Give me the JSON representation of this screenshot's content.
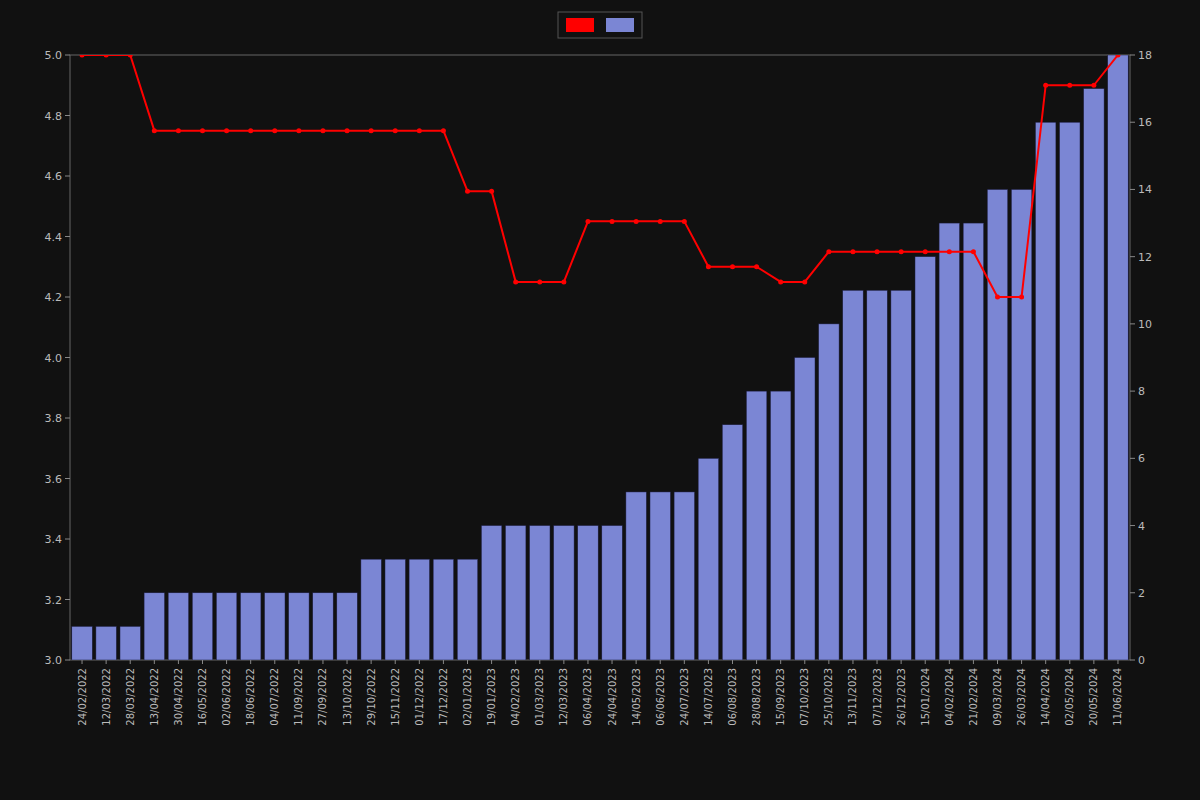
{
  "chart_data": {
    "type": "bar",
    "categories": [
      "24/02/2022",
      "12/03/2022",
      "28/03/2022",
      "13/04/2022",
      "30/04/2022",
      "16/05/2022",
      "02/06/2022",
      "18/06/2022",
      "04/07/2022",
      "11/09/2022",
      "27/09/2022",
      "13/10/2022",
      "29/10/2022",
      "15/11/2022",
      "01/12/2022",
      "17/12/2022",
      "02/01/2023",
      "19/01/2023",
      "04/02/2023",
      "01/03/2023",
      "12/03/2023",
      "06/04/2023",
      "24/04/2023",
      "14/05/2023",
      "06/06/2023",
      "24/07/2023",
      "14/07/2023",
      "06/08/2023",
      "28/08/2023",
      "15/09/2023",
      "07/10/2023",
      "25/10/2023",
      "13/11/2023",
      "07/12/2023",
      "26/12/2023",
      "15/01/2024",
      "04/02/2024",
      "21/02/2024",
      "09/03/2024",
      "26/03/2024",
      "14/04/2024",
      "02/05/2024",
      "20/05/2024",
      "11/06/2024"
    ],
    "series": [
      {
        "type": "line",
        "color": "#ff0000",
        "marker": "circle",
        "values": [
          5.0,
          5.0,
          5.0,
          4.75,
          4.75,
          4.75,
          4.75,
          4.75,
          4.75,
          4.75,
          4.75,
          4.75,
          4.75,
          4.75,
          4.75,
          4.75,
          4.55,
          4.55,
          4.25,
          4.25,
          4.25,
          4.45,
          4.45,
          4.45,
          4.45,
          4.45,
          4.3,
          4.3,
          4.3,
          4.25,
          4.25,
          4.35,
          4.35,
          4.35,
          4.35,
          4.35,
          4.35,
          4.35,
          4.2,
          4.2,
          4.9,
          4.9,
          4.9,
          5.0
        ]
      },
      {
        "type": "bar",
        "axis": "y2",
        "color": "#7b86d4",
        "values": [
          1,
          1,
          1,
          2,
          2,
          2,
          2,
          2,
          2,
          2,
          2,
          2,
          3,
          3,
          3,
          3,
          3,
          4,
          4,
          4,
          4,
          4,
          4,
          5,
          5,
          5,
          6,
          7,
          8,
          8,
          9,
          10,
          11,
          11,
          11,
          12,
          13,
          13,
          14,
          14,
          16,
          16,
          17,
          18
        ]
      }
    ],
    "ylim": [
      3.0,
      5.0
    ],
    "yticks": [
      {
        "value": 3.0,
        "label": "3.0"
      },
      3.2,
      3.4,
      3.6,
      3.8,
      {
        "value": 4.0,
        "label": "4.0"
      },
      4.2,
      4.4,
      4.6,
      4.8,
      {
        "value": 5.0,
        "label": "5.0"
      }
    ],
    "y2lim": [
      0,
      18
    ],
    "y2ticks": [
      0,
      2,
      4,
      6,
      8,
      10,
      12,
      14,
      16,
      18
    ],
    "grid": false,
    "legend": "top"
  }
}
